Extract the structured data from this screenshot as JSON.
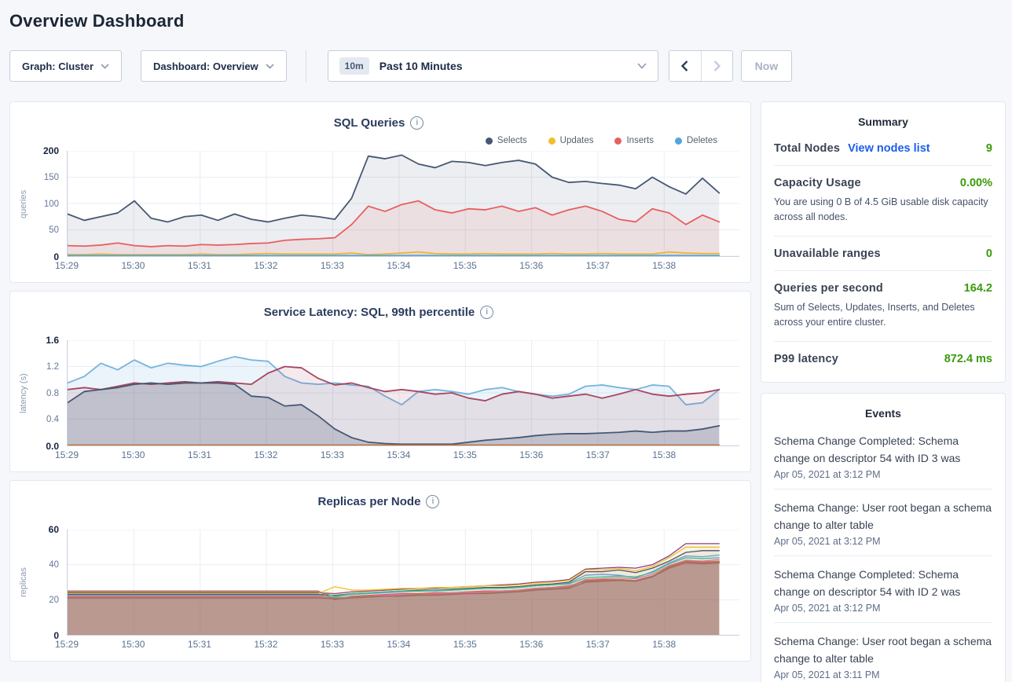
{
  "page": {
    "title": "Overview Dashboard"
  },
  "toolbar": {
    "graph_dropdown": "Graph: Cluster",
    "dashboard_dropdown": "Dashboard: Overview",
    "time_badge": "10m",
    "time_label": "Past 10 Minutes",
    "now_button": "Now"
  },
  "charts": [
    {
      "type": "line",
      "title": "SQL Queries",
      "ylabel": "queries",
      "ymax": 200,
      "yticks": [
        0,
        50,
        100,
        150,
        200
      ],
      "ytick_labels": [
        "0",
        "50",
        "100",
        "150",
        "200"
      ],
      "xticks": [
        "15:29",
        "15:30",
        "15:31",
        "15:32",
        "15:33",
        "15:34",
        "15:35",
        "15:36",
        "15:37",
        "15:38"
      ],
      "show_legend": true,
      "legend_position": "top-right",
      "grid": true,
      "stroke_width": 1.8,
      "series": [
        {
          "name": "Selects",
          "color": "#475872",
          "fill": "rgba(71,88,114,0.10)",
          "values": [
            80,
            68,
            75,
            82,
            105,
            72,
            65,
            75,
            78,
            68,
            80,
            70,
            65,
            72,
            78,
            75,
            70,
            110,
            190,
            185,
            192,
            175,
            168,
            180,
            178,
            172,
            178,
            182,
            175,
            150,
            140,
            142,
            138,
            135,
            128,
            150,
            132,
            118,
            148,
            120
          ]
        },
        {
          "name": "Updates",
          "color": "#f2be2c",
          "fill": "rgba(242,190,44,0.15)",
          "values": [
            3,
            3,
            4,
            3,
            3,
            3,
            3,
            3,
            4,
            3,
            3,
            4,
            5,
            4,
            4,
            4,
            4,
            6,
            3,
            4,
            6,
            8,
            5,
            4,
            4,
            5,
            4,
            4,
            4,
            5,
            4,
            4,
            5,
            4,
            4,
            4,
            8,
            6,
            5,
            5
          ]
        },
        {
          "name": "Inserts",
          "color": "#e85f5f",
          "fill": "rgba(232,95,95,0.10)",
          "values": [
            20,
            19,
            21,
            25,
            20,
            18,
            20,
            19,
            22,
            21,
            22,
            24,
            25,
            30,
            32,
            33,
            35,
            60,
            95,
            85,
            98,
            105,
            88,
            82,
            90,
            88,
            95,
            85,
            92,
            78,
            88,
            95,
            85,
            70,
            65,
            90,
            82,
            60,
            78,
            65
          ]
        },
        {
          "name": "Deletes",
          "color": "#51a6e0",
          "fill": "rgba(81,166,224,0.15)",
          "values": [
            1,
            1,
            1,
            1,
            1,
            1,
            1,
            1,
            1,
            1,
            1,
            1,
            1,
            1,
            1,
            1,
            1,
            1,
            1,
            1,
            1,
            1,
            1,
            1,
            1,
            1,
            1,
            1,
            1,
            1,
            1,
            1,
            1,
            1,
            1,
            1,
            1,
            1,
            1,
            1
          ]
        }
      ]
    },
    {
      "type": "line",
      "title": "Service Latency: SQL, 99th percentile",
      "ylabel": "latency (s)",
      "ymax": 1.6,
      "yticks": [
        0,
        0.4,
        0.8,
        1.2,
        1.6
      ],
      "ytick_labels": [
        "0.0",
        "0.4",
        "0.8",
        "1.2",
        "1.6"
      ],
      "xticks": [
        "15:29",
        "15:30",
        "15:31",
        "15:32",
        "15:33",
        "15:34",
        "15:35",
        "15:36",
        "15:37",
        "15:38"
      ],
      "show_legend": false,
      "grid": true,
      "stroke_width": 1.8,
      "series": [
        {
          "name": "series-blue",
          "color": "#76b4e0",
          "fill": "rgba(118,180,224,0.15)",
          "values": [
            0.95,
            1.05,
            1.25,
            1.15,
            1.3,
            1.18,
            1.25,
            1.22,
            1.2,
            1.28,
            1.35,
            1.3,
            1.28,
            1.05,
            0.95,
            0.93,
            0.95,
            0.92,
            0.9,
            0.75,
            0.62,
            0.82,
            0.85,
            0.82,
            0.78,
            0.85,
            0.88,
            0.82,
            0.78,
            0.75,
            0.78,
            0.9,
            0.92,
            0.88,
            0.85,
            0.92,
            0.9,
            0.62,
            0.65,
            0.85
          ]
        },
        {
          "name": "series-red",
          "color": "#a8465f",
          "fill": "rgba(168,70,95,0.12)",
          "values": [
            0.85,
            0.88,
            0.85,
            0.9,
            0.95,
            0.93,
            0.95,
            0.97,
            0.95,
            0.97,
            0.95,
            0.93,
            1.1,
            1.2,
            1.18,
            1.02,
            0.92,
            0.95,
            0.88,
            0.82,
            0.85,
            0.82,
            0.78,
            0.8,
            0.72,
            0.68,
            0.78,
            0.82,
            0.78,
            0.72,
            0.75,
            0.78,
            0.72,
            0.78,
            0.85,
            0.78,
            0.75,
            0.78,
            0.8,
            0.85
          ]
        },
        {
          "name": "series-navy",
          "color": "#475872",
          "fill": "rgba(71,88,114,0.22)",
          "values": [
            0.65,
            0.82,
            0.85,
            0.88,
            0.93,
            0.95,
            0.93,
            0.95,
            0.95,
            0.95,
            0.93,
            0.75,
            0.73,
            0.6,
            0.62,
            0.45,
            0.25,
            0.12,
            0.05,
            0.03,
            0.02,
            0.02,
            0.02,
            0.02,
            0.05,
            0.08,
            0.1,
            0.12,
            0.15,
            0.17,
            0.18,
            0.18,
            0.19,
            0.2,
            0.22,
            0.2,
            0.22,
            0.22,
            0.25,
            0.3
          ]
        },
        {
          "name": "series-orange",
          "color": "#bf7136",
          "fill": null,
          "values": [
            0.005,
            0.005,
            0.005,
            0.005,
            0.005,
            0.005,
            0.005,
            0.005,
            0.005,
            0.005,
            0.005,
            0.005,
            0.005,
            0.005,
            0.005,
            0.005,
            0.005,
            0.005,
            0.005,
            0.005,
            0.005,
            0.005,
            0.005,
            0.005,
            0.005,
            0.005,
            0.005,
            0.005,
            0.005,
            0.005,
            0.005,
            0.005,
            0.005,
            0.005,
            0.005,
            0.005,
            0.005,
            0.005,
            0.005,
            0.005
          ]
        }
      ]
    },
    {
      "type": "line",
      "title": "Replicas per Node",
      "ylabel": "replicas",
      "ymax": 60,
      "yticks": [
        0,
        20,
        40,
        60
      ],
      "ytick_labels": [
        "0",
        "20",
        "40",
        "60"
      ],
      "xticks": [
        "15:29",
        "15:30",
        "15:31",
        "15:32",
        "15:33",
        "15:34",
        "15:35",
        "15:36",
        "15:37",
        "15:38"
      ],
      "show_legend": false,
      "grid": true,
      "stroke_width": 1.3,
      "series": [
        {
          "name": "series-1",
          "color": "#8a3f7e",
          "fill": "rgba(140,95,95,0.05)",
          "values": [
            24,
            24,
            24,
            24,
            24,
            24,
            24,
            24,
            24,
            24,
            24,
            24,
            24,
            24,
            24,
            24,
            23.5,
            24.5,
            25,
            25.5,
            26,
            26.5,
            26.5,
            27,
            27.5,
            28,
            28.5,
            29,
            30,
            30.5,
            31.5,
            37.5,
            38,
            38.5,
            38,
            40,
            45,
            52,
            52,
            52
          ]
        },
        {
          "name": "series-2",
          "color": "#f2be2c",
          "fill": "rgba(242,190,44,0.07)",
          "values": [
            23.5,
            23.5,
            23.5,
            23.5,
            23.5,
            23.5,
            23.5,
            23.5,
            23.5,
            23.5,
            23.5,
            23.5,
            23.5,
            23.5,
            23.5,
            23.5,
            27.5,
            25.5,
            25.5,
            26,
            26.5,
            26.5,
            27,
            27,
            27.5,
            28,
            28,
            28.5,
            29.5,
            30,
            31,
            37,
            37,
            38,
            36.5,
            39,
            44,
            50,
            50,
            50
          ]
        },
        {
          "name": "series-3",
          "color": "#4f5256",
          "fill": "rgba(79,82,86,0.05)",
          "values": [
            23,
            23,
            23,
            23,
            23,
            23,
            23,
            23,
            23,
            23,
            23,
            23,
            23,
            23,
            23,
            23,
            22.5,
            23.5,
            24,
            24.5,
            25,
            25.5,
            25.5,
            26,
            26.5,
            27,
            27,
            27.5,
            28.5,
            29,
            30,
            36,
            36,
            37,
            35.5,
            38,
            42,
            47,
            48,
            48
          ]
        },
        {
          "name": "series-4",
          "color": "#6a9fd0",
          "fill": "rgba(106,159,208,0.05)",
          "values": [
            22.5,
            22.5,
            22.5,
            22.5,
            22.5,
            22.5,
            22.5,
            22.5,
            22.5,
            22.5,
            22.5,
            22.5,
            22.5,
            22.5,
            22.5,
            22.5,
            21.5,
            23,
            23.5,
            24,
            24.5,
            25,
            25,
            25.5,
            26,
            26.5,
            26.5,
            27,
            28,
            28.5,
            29.5,
            34,
            34.5,
            34,
            32.5,
            36,
            41,
            45,
            44.5,
            45.5
          ]
        },
        {
          "name": "series-5",
          "color": "#46bc85",
          "fill": "rgba(70,188,133,0.05)",
          "values": [
            24.5,
            24.5,
            24.5,
            24.5,
            24.5,
            24.5,
            24.5,
            24.5,
            24.5,
            24.5,
            24.5,
            24.5,
            24.5,
            24.5,
            24.5,
            24.5,
            22,
            23.5,
            24,
            24.5,
            25,
            25,
            25.5,
            25.5,
            26,
            26.5,
            26.5,
            27,
            28,
            28.5,
            29,
            32.5,
            33,
            33.5,
            33,
            35.5,
            40.5,
            44,
            43.5,
            44
          ]
        },
        {
          "name": "series-6",
          "color": "#d85c5c",
          "fill": "rgba(216,92,92,0.05)",
          "values": [
            25,
            25,
            25,
            25,
            25,
            25,
            25,
            25,
            25,
            25,
            25,
            25,
            25,
            25,
            25,
            25,
            20,
            22,
            22.5,
            23,
            23.5,
            23.5,
            24,
            24,
            24.5,
            25,
            25,
            25.5,
            26.5,
            27,
            28,
            30.5,
            31,
            31.5,
            31,
            33.5,
            38.5,
            41.5,
            41,
            41.5
          ]
        },
        {
          "name": "series-7",
          "color": "#e66fae",
          "fill": "rgba(230,111,174,0.05)",
          "values": [
            22,
            22,
            22,
            22,
            22,
            22,
            22,
            22,
            22,
            22,
            22,
            22,
            22,
            22,
            22,
            22,
            20.5,
            21.5,
            22,
            22.5,
            23,
            23,
            23.5,
            24,
            24,
            24.5,
            25,
            25.5,
            26.5,
            27,
            27.5,
            31.5,
            32,
            32.5,
            32,
            34.5,
            39.5,
            42.5,
            42,
            43
          ]
        },
        {
          "name": "series-8",
          "color": "#a98242",
          "fill": "rgba(169,130,66,0.05)",
          "values": [
            21.5,
            21.5,
            21.5,
            21.5,
            21.5,
            21.5,
            21.5,
            21.5,
            21.5,
            21.5,
            21.5,
            21.5,
            21.5,
            21.5,
            21.5,
            21.5,
            21,
            21.5,
            22,
            22,
            22.5,
            23,
            23,
            23.5,
            23.5,
            24,
            24.5,
            25,
            26,
            26.5,
            27,
            31,
            31.5,
            31.5,
            31,
            33.5,
            39,
            42,
            41.5,
            42
          ]
        },
        {
          "name": "series-9",
          "color": "#9c6b6b",
          "fill": "rgba(153,96,89,0.5)",
          "values": [
            21,
            21,
            21,
            21,
            21,
            21,
            21,
            21,
            21,
            21,
            21,
            21,
            21,
            21,
            21,
            21,
            20.5,
            21,
            21.5,
            22,
            22,
            22.5,
            22.5,
            23,
            23.5,
            23.5,
            24,
            24.5,
            25.5,
            26,
            26.5,
            30,
            30.5,
            31,
            30.5,
            33,
            38,
            41,
            40.5,
            41
          ]
        }
      ]
    }
  ],
  "summary": {
    "title": "Summary",
    "rows": [
      {
        "label": "Total Nodes",
        "link": "View nodes list",
        "value": "9"
      },
      {
        "label": "Capacity Usage",
        "value": "0.00%",
        "sub": "You are using 0 B of 4.5 GiB usable disk capacity across all nodes."
      },
      {
        "label": "Unavailable ranges",
        "value": "0"
      },
      {
        "label": "Queries per second",
        "value": "164.2",
        "sub": "Sum of Selects, Updates, Inserts, and Deletes across your entire cluster."
      },
      {
        "label": "P99 latency",
        "value": "872.4 ms"
      }
    ],
    "accent_green": "#3a9b0a",
    "link_blue": "#1b5fea"
  },
  "events": {
    "title": "Events",
    "items": [
      {
        "text": "Schema Change Completed: Schema change on descriptor 54 with ID 3 was",
        "time": "Apr 05, 2021 at 3:12 PM"
      },
      {
        "text": "Schema Change: User root began a schema change to alter table",
        "time": "Apr 05, 2021 at 3:12 PM"
      },
      {
        "text": "Schema Change Completed: Schema change on descriptor 54 with ID 2 was",
        "time": "Apr 05, 2021 at 3:12 PM"
      },
      {
        "text": "Schema Change: User root began a schema change to alter table",
        "time": "Apr 05, 2021 at 3:11 PM"
      }
    ]
  }
}
